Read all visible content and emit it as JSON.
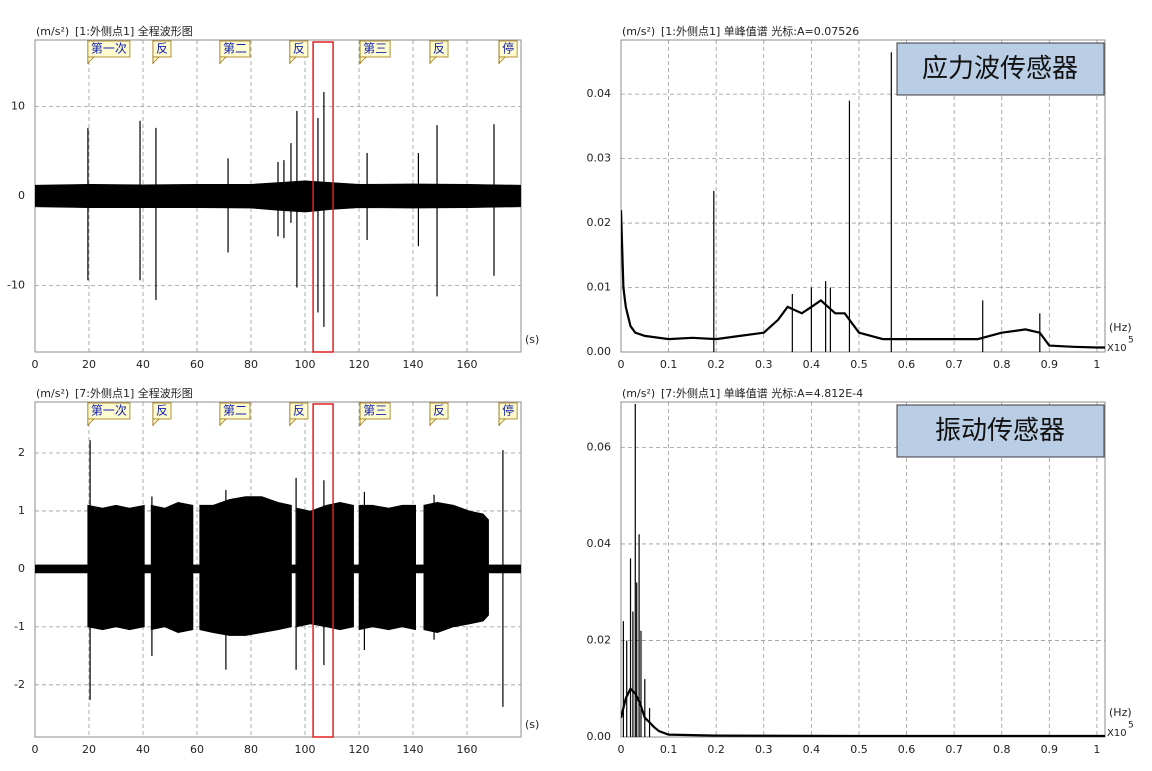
{
  "chart_data": [
    {
      "type": "waveform",
      "unit": "(m/s²)",
      "title": "[1:外侧点1] 全程波形图",
      "x_unit": "(s)",
      "xlim": [
        0,
        180
      ],
      "ylim": [
        -17.4,
        17.4
      ],
      "xticks": [
        0,
        20,
        40,
        60,
        80,
        100,
        120,
        140,
        160
      ],
      "yticks": [
        -10,
        0,
        10
      ],
      "grid": true,
      "color": "#000000",
      "segments": [
        {
          "x": [
            0,
            20,
            40,
            60,
            80,
            90,
            100,
            110,
            120,
            140,
            160,
            180
          ],
          "upper": [
            1.2,
            1.3,
            1.25,
            1.3,
            1.3,
            1.5,
            1.7,
            1.5,
            1.3,
            1.35,
            1.3,
            1.2
          ],
          "lower": [
            -1.2,
            -1.3,
            -1.3,
            -1.3,
            -1.35,
            -1.6,
            -1.8,
            -1.5,
            -1.3,
            -1.35,
            -1.3,
            -1.2
          ]
        }
      ],
      "spikes": {
        "x": [
          19.6,
          38.9,
          44.8,
          71.5,
          90,
          92.2,
          94.8,
          97,
          104.8,
          107,
          123,
          142,
          148.9,
          170
        ],
        "top": [
          7.6,
          8.4,
          7.6,
          4.2,
          3.8,
          4.0,
          5.9,
          9.5,
          8.7,
          11.6,
          4.8,
          4.8,
          7.9,
          8.0
        ],
        "bottom": [
          -9.4,
          -9.4,
          -11.6,
          -6.3,
          -4.5,
          -4.7,
          -3.0,
          -10.2,
          -13,
          -14.6,
          -4.9,
          -5.6,
          -11.2,
          -8.9
        ]
      },
      "events": {
        "x": [
          19.6,
          43.7,
          68.5,
          94.4,
          120.4,
          146.3,
          171.9
        ],
        "labels": [
          "第一次",
          "反",
          "第二",
          "反",
          "第三",
          "反",
          "停"
        ]
      },
      "highlight": {
        "x": [
          103,
          110.4
        ],
        "color": "#e02020"
      }
    },
    {
      "type": "spectrum",
      "unit": "(m/s²)",
      "title": "[1:外侧点1] 单峰值谱 光标:A=0.07526",
      "x_unit": "(Hz)",
      "x_multiplier": "X10",
      "x_exponent": "5",
      "annotation": "应力波传感器",
      "xlim": [
        0,
        1.017
      ],
      "ylim": [
        0,
        0.0484
      ],
      "xticks": [
        0,
        0.1,
        0.2,
        0.3,
        0.4,
        0.5,
        0.6,
        0.7,
        0.8,
        0.9,
        1
      ],
      "yticks": [
        {
          "value": 0,
          "label": "0.00"
        },
        0.01,
        0.02,
        0.03,
        0.04
      ],
      "grid": true,
      "color": "#000000",
      "x": [
        0,
        0.005,
        0.01,
        0.02,
        0.03,
        0.05,
        0.1,
        0.15,
        0.2,
        0.25,
        0.3,
        0.33,
        0.35,
        0.38,
        0.4,
        0.42,
        0.45,
        0.47,
        0.5,
        0.55,
        0.6,
        0.65,
        0.7,
        0.75,
        0.8,
        0.85,
        0.88,
        0.9,
        0.95,
        1.0,
        1.017
      ],
      "values": [
        0.022,
        0.01,
        0.007,
        0.004,
        0.003,
        0.0025,
        0.002,
        0.0022,
        0.002,
        0.0025,
        0.003,
        0.005,
        0.007,
        0.006,
        0.007,
        0.008,
        0.006,
        0.006,
        0.003,
        0.002,
        0.002,
        0.002,
        0.002,
        0.002,
        0.003,
        0.0035,
        0.003,
        0.001,
        0.0008,
        0.0007,
        0.0007
      ],
      "spikes": {
        "x": [
          0.195,
          0.36,
          0.4,
          0.43,
          0.44,
          0.48,
          0.568,
          0.76,
          0.88
        ],
        "values": [
          0.025,
          0.009,
          0.01,
          0.011,
          0.01,
          0.039,
          0.0465,
          0.008,
          0.006
        ]
      }
    },
    {
      "type": "waveform",
      "unit": "(m/s²)",
      "title": "[7:外侧点1] 全程波形图",
      "x_unit": "(s)",
      "xlim": [
        0,
        180
      ],
      "ylim": [
        -2.9,
        2.88
      ],
      "xticks": [
        0,
        20,
        40,
        60,
        80,
        100,
        120,
        140,
        160
      ],
      "yticks": [
        -2,
        -1,
        0,
        1,
        2
      ],
      "grid": true,
      "color": "#000000",
      "segments": [
        {
          "x": [
            0,
            180
          ],
          "upper": [
            0.07,
            0.07
          ],
          "lower": [
            -0.07,
            -0.07
          ]
        },
        {
          "x": [
            19.5,
            25,
            30,
            35,
            40.5
          ],
          "upper": [
            1.1,
            1.05,
            1.1,
            1.05,
            1.1
          ],
          "lower": [
            -1.0,
            -1.05,
            -1.0,
            -1.05,
            -1.0
          ]
        },
        {
          "x": [
            43,
            48,
            53,
            58.5
          ],
          "upper": [
            1.1,
            1.05,
            1.15,
            1.1
          ],
          "lower": [
            -1.05,
            -1.0,
            -1.1,
            -1.05
          ]
        },
        {
          "x": [
            61,
            66,
            72,
            78,
            84,
            90,
            95
          ],
          "upper": [
            1.1,
            1.1,
            1.2,
            1.25,
            1.25,
            1.15,
            1.1
          ],
          "lower": [
            -1.05,
            -1.1,
            -1.15,
            -1.15,
            -1.1,
            -1.05,
            -1.0
          ]
        },
        {
          "x": [
            97,
            102,
            108,
            113,
            118
          ],
          "upper": [
            1.05,
            1.0,
            1.1,
            1.15,
            1.1
          ],
          "lower": [
            -1.0,
            -0.95,
            -1.0,
            -1.05,
            -1.0
          ]
        },
        {
          "x": [
            120,
            125,
            131,
            136,
            141
          ],
          "upper": [
            1.1,
            1.1,
            1.05,
            1.1,
            1.1
          ],
          "lower": [
            -1.05,
            -1.0,
            -1.05,
            -1.0,
            -1.05
          ]
        },
        {
          "x": [
            144,
            149,
            155,
            161,
            166,
            168
          ],
          "upper": [
            1.1,
            1.15,
            1.1,
            1.0,
            0.95,
            0.85
          ],
          "lower": [
            -1.05,
            -1.1,
            -1.0,
            -0.95,
            -0.9,
            -0.8
          ]
        }
      ],
      "spikes": {
        "x": [
          20.4,
          43.3,
          70.7,
          96.7,
          107,
          122,
          147.8,
          173.3
        ],
        "top": [
          2.22,
          1.25,
          1.36,
          1.57,
          1.53,
          1.33,
          1.28,
          2.05
        ],
        "bottom": [
          -2.26,
          -1.5,
          -1.74,
          -1.74,
          -1.66,
          -1.4,
          -1.22,
          -2.38
        ]
      },
      "events": {
        "x": [
          19.6,
          43.7,
          68.5,
          94.4,
          120.4,
          146.3,
          171.9
        ],
        "labels": [
          "第一次",
          "反",
          "第二",
          "反",
          "第三",
          "反",
          "停"
        ]
      },
      "highlight": {
        "x": [
          103,
          110.4
        ],
        "color": "#e02020"
      }
    },
    {
      "type": "spectrum",
      "unit": "(m/s²)",
      "title": "[7:外侧点1] 单峰值谱 光标:A=4.812E-4",
      "x_unit": "(Hz)",
      "x_multiplier": "X10",
      "x_exponent": "5",
      "annotation": "振动传感器",
      "xlim": [
        0,
        1.017
      ],
      "ylim": [
        0,
        0.0694
      ],
      "xticks": [
        0,
        0.1,
        0.2,
        0.3,
        0.4,
        0.5,
        0.6,
        0.7,
        0.8,
        0.9,
        1
      ],
      "yticks": [
        {
          "value": 0,
          "label": "0.00"
        },
        0.02,
        0.04,
        0.06
      ],
      "grid": true,
      "color": "#000000",
      "x": [
        0,
        0.01,
        0.02,
        0.03,
        0.04,
        0.05,
        0.06,
        0.07,
        0.08,
        0.1,
        0.2,
        0.5,
        1.0,
        1.017
      ],
      "values": [
        0.004,
        0.008,
        0.01,
        0.009,
        0.007,
        0.004,
        0.003,
        0.002,
        0.0012,
        0.0005,
        0.0003,
        0.0002,
        0.0002,
        0.0002
      ],
      "spikes": {
        "x": [
          0.005,
          0.012,
          0.02,
          0.025,
          0.03,
          0.033,
          0.038,
          0.042,
          0.05,
          0.06
        ],
        "values": [
          0.024,
          0.02,
          0.037,
          0.026,
          0.069,
          0.032,
          0.042,
          0.022,
          0.012,
          0.006
        ]
      }
    }
  ]
}
